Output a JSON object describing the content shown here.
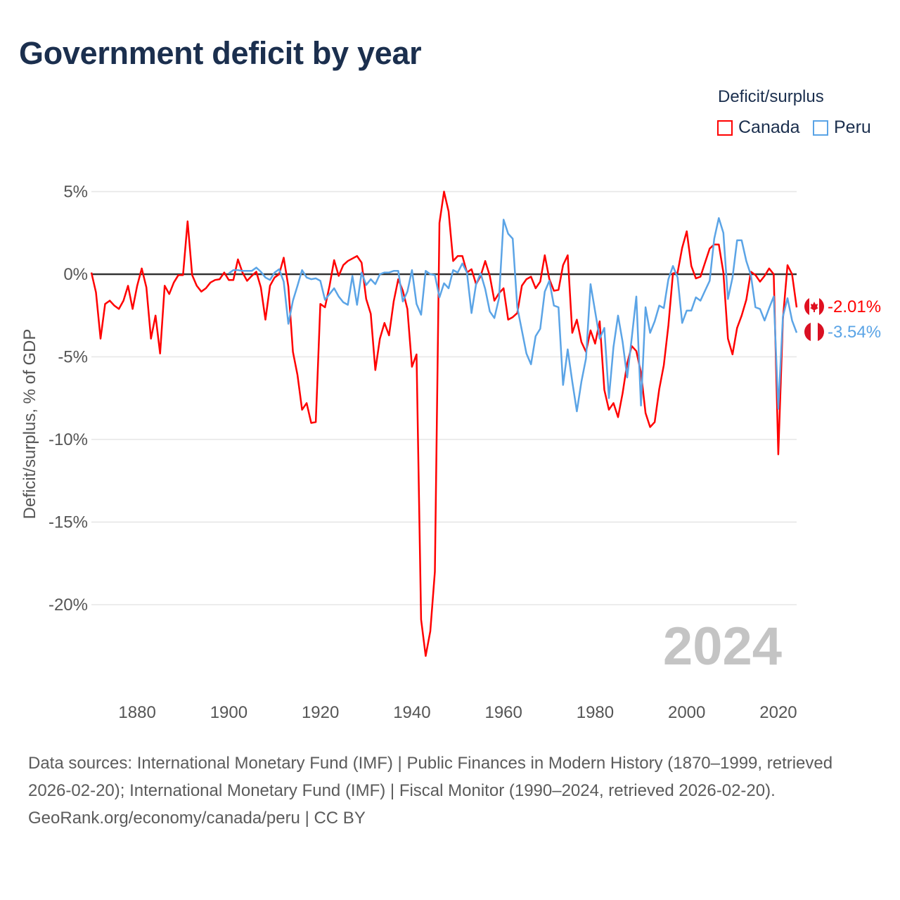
{
  "title": "Government deficit by year",
  "legend": {
    "title": "Deficit/surplus",
    "items": [
      {
        "label": "Canada",
        "color": "#ff0000"
      },
      {
        "label": "Peru",
        "color": "#5ba4e6"
      }
    ]
  },
  "year_watermark": "2024",
  "footer": {
    "sources": "Data sources: International Monetary Fund (IMF) | Public Finances in Modern History (1870–1999, retrieved 2026-02-20); International Monetary Fund (IMF) | Fiscal Monitor (1990–2024, retrieved 2026-02-20).",
    "attribution": "GeoRank.org/economy/canada/peru | CC BY"
  },
  "chart_data": {
    "type": "line",
    "title": "Government deficit by year",
    "xlabel": "",
    "ylabel": "Deficit/surplus, % of GDP",
    "xlim": [
      1870,
      2024
    ],
    "ylim": [
      -24,
      5
    ],
    "xticks": [
      1880,
      1900,
      1920,
      1940,
      1960,
      1980,
      2000,
      2020
    ],
    "xtick_labels": [
      "1880",
      "1900",
      "1920",
      "1940",
      "1960",
      "1980",
      "2000",
      "2020"
    ],
    "yticks": [
      5,
      0,
      -5,
      -10,
      -15,
      -20
    ],
    "ytick_labels": [
      "5%",
      "0%",
      "-5%",
      "-10%",
      "-15%",
      "-20%"
    ],
    "grid": true,
    "legend_position": "top-right",
    "series": [
      {
        "name": "Canada",
        "color": "#ff0000",
        "flag": "canada-flag",
        "start_year": 1870,
        "end_label": "-2.01%",
        "values": [
          0.1,
          -1.1,
          -3.9,
          -1.8,
          -1.6,
          -1.9,
          -2.1,
          -1.6,
          -0.7,
          -2.1,
          -0.7,
          0.35,
          -0.8,
          -3.9,
          -2.5,
          -4.8,
          -0.7,
          -1.2,
          -0.5,
          -0.05,
          -0.05,
          3.2,
          -0.05,
          -0.7,
          -1.05,
          -0.85,
          -0.5,
          -0.35,
          -0.3,
          0.1,
          -0.35,
          -0.35,
          0.9,
          0.1,
          -0.4,
          -0.1,
          0.15,
          -0.8,
          -2.75,
          -0.7,
          -0.2,
          0,
          1.0,
          -0.75,
          -4.7,
          -6.1,
          -8.2,
          -7.8,
          -9.0,
          -8.95,
          -1.8,
          -2.0,
          -0.7,
          0.85,
          -0.1,
          0.55,
          0.8,
          0.95,
          1.1,
          0.7,
          -1.5,
          -2.4,
          -5.8,
          -3.9,
          -2.95,
          -3.7,
          -1.65,
          -0.3,
          -1.0,
          -2.1,
          -5.6,
          -4.85,
          -20.9,
          -23.1,
          -21.6,
          -18.0,
          3.1,
          5.0,
          3.8,
          0.8,
          1.1,
          1.1,
          0.1,
          0.3,
          -0.6,
          -0.1,
          0.8,
          -0.1,
          -1.6,
          -1.15,
          -0.85,
          -2.75,
          -2.6,
          -2.35,
          -0.7,
          -0.3,
          -0.15,
          -0.85,
          -0.45,
          1.15,
          -0.3,
          -1.0,
          -0.95,
          0.55,
          1.15,
          -3.55,
          -2.75,
          -4.1,
          -4.7,
          -3.4,
          -4.2,
          -2.85,
          -7.0,
          -8.2,
          -7.8,
          -8.65,
          -7.2,
          -5.4,
          -4.35,
          -4.65,
          -5.95,
          -8.4,
          -9.25,
          -8.95,
          -6.95,
          -5.5,
          -3.1,
          0.05,
          0.1,
          1.6,
          2.6,
          0.5,
          -0.25,
          -0.15,
          0.7,
          1.55,
          1.8,
          1.8,
          0.1,
          -3.9,
          -4.85,
          -3.25,
          -2.5,
          -1.55,
          0.15,
          -0.05,
          -0.45,
          -0.1,
          0.35,
          0.0,
          -10.9,
          -2.7,
          0.55,
          0.0,
          -2.01
        ]
      },
      {
        "name": "Peru",
        "color": "#5ba4e6",
        "flag": "peru-flag",
        "start_year": 1900,
        "end_label": "-3.54%",
        "values": [
          0.05,
          0.25,
          0.25,
          0.2,
          0.2,
          0.2,
          0.4,
          0.15,
          -0.2,
          -0.35,
          0.1,
          0.3,
          -0.45,
          -3.0,
          -1.6,
          -0.7,
          0.25,
          -0.2,
          -0.3,
          -0.25,
          -0.4,
          -1.55,
          -1.2,
          -0.85,
          -1.35,
          -1.7,
          -1.85,
          -0.1,
          -1.85,
          0.1,
          -0.65,
          -0.3,
          -0.6,
          0.0,
          0.1,
          0.1,
          0.2,
          0.2,
          -1.65,
          -1.05,
          0.25,
          -1.8,
          -2.45,
          0.2,
          0.0,
          -0.05,
          -1.4,
          -0.55,
          -0.85,
          0.25,
          0.1,
          0.65,
          0.1,
          -2.35,
          -0.6,
          0.05,
          -0.9,
          -2.25,
          -2.65,
          -1.45,
          3.3,
          2.45,
          2.15,
          -2.0,
          -3.4,
          -4.8,
          -5.45,
          -3.75,
          -3.3,
          -1.05,
          -0.4,
          -1.9,
          -2.0,
          -6.7,
          -4.55,
          -6.5,
          -8.3,
          -6.5,
          -5.1,
          -0.6,
          -2.25,
          -3.9,
          -3.25,
          -7.5,
          -4.4,
          -2.5,
          -4.1,
          -6.25,
          -3.85,
          -1.35,
          -7.95,
          -2.0,
          -3.55,
          -2.85,
          -1.9,
          -2.05,
          -0.3,
          0.5,
          -0.2,
          -2.95,
          -2.2,
          -2.2,
          -1.4,
          -1.6,
          -1.0,
          -0.4,
          2.15,
          3.4,
          2.5,
          -1.5,
          -0.2,
          2.05,
          2.05,
          0.8,
          -0.05,
          -2.0,
          -2.1,
          -2.8,
          -2.05,
          -1.35,
          -8.15,
          -2.55,
          -1.45,
          -2.8,
          -3.54
        ]
      }
    ]
  }
}
